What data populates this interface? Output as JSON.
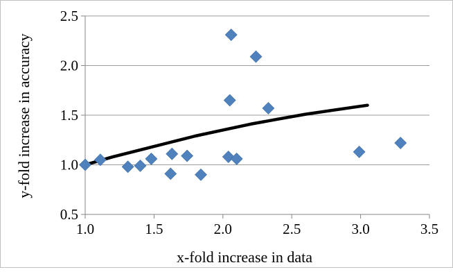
{
  "chart_data": {
    "type": "scatter",
    "xlabel": "x-fold increase in data",
    "ylabel": "y-fold increase in accuracy",
    "xlim": [
      1.0,
      3.5
    ],
    "ylim": [
      0.5,
      2.5
    ],
    "x_ticks": [
      "1.0",
      "1.5",
      "2.0",
      "2.5",
      "3.0",
      "3.5"
    ],
    "y_ticks": [
      "0.5",
      "1.0",
      "1.5",
      "2.0",
      "2.5"
    ],
    "grid": "horizontal",
    "legend": "none",
    "series": [
      {
        "marker": "diamond",
        "color": "#4f81bd",
        "points": [
          [
            1.0,
            1.0
          ],
          [
            1.11,
            1.05
          ],
          [
            1.31,
            0.98
          ],
          [
            1.4,
            0.99
          ],
          [
            1.48,
            1.06
          ],
          [
            1.63,
            1.11
          ],
          [
            1.62,
            0.91
          ],
          [
            1.74,
            1.09
          ],
          [
            1.84,
            0.9
          ],
          [
            2.04,
            1.08
          ],
          [
            2.1,
            1.06
          ],
          [
            2.05,
            1.65
          ],
          [
            2.06,
            2.31
          ],
          [
            2.24,
            2.09
          ],
          [
            2.33,
            1.57
          ],
          [
            2.99,
            1.13
          ],
          [
            3.29,
            1.22
          ]
        ]
      }
    ],
    "trendline": {
      "color": "#000000",
      "points": [
        [
          1.0,
          1.0
        ],
        [
          1.1,
          1.04
        ],
        [
          1.2,
          1.08
        ],
        [
          1.4,
          1.15
        ],
        [
          1.6,
          1.22
        ],
        [
          1.8,
          1.29
        ],
        [
          2.0,
          1.35
        ],
        [
          2.2,
          1.41
        ],
        [
          2.4,
          1.46
        ],
        [
          2.6,
          1.51
        ],
        [
          2.8,
          1.55
        ],
        [
          3.05,
          1.6
        ]
      ]
    }
  }
}
